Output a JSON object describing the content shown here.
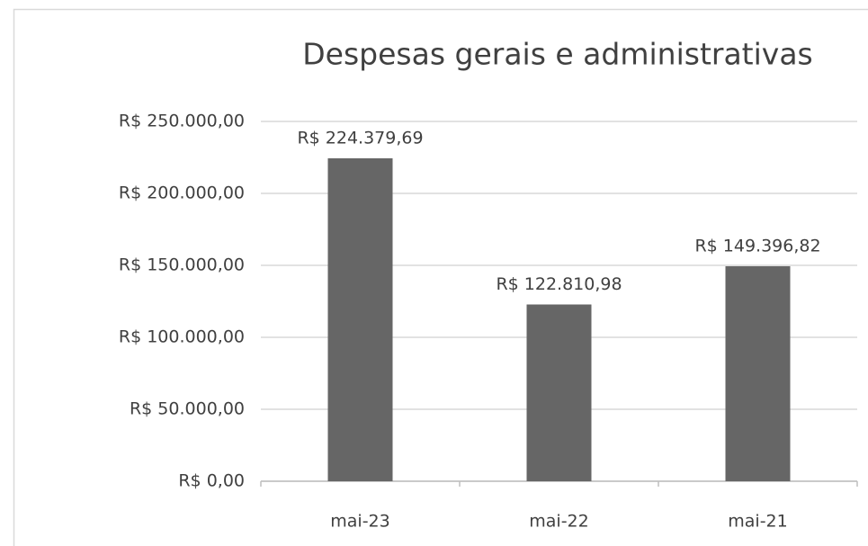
{
  "chart_data": {
    "type": "bar",
    "title": "Despesas gerais e administrativas",
    "categories": [
      "mai-23",
      "mai-22",
      "mai-21"
    ],
    "values": [
      224379.69,
      122810.98,
      149396.82
    ],
    "value_labels": [
      "R$ 224.379,69",
      "R$ 122.810,98",
      "R$ 149.396,82"
    ],
    "color": "#666666",
    "ylim": [
      0,
      250000
    ],
    "yticks": [
      {
        "value": 0,
        "label": "R$ 0,00"
      },
      {
        "value": 50000,
        "label": "R$ 50.000,00"
      },
      {
        "value": 100000,
        "label": "R$ 100.000,00"
      },
      {
        "value": 150000,
        "label": "R$ 150.000,00"
      },
      {
        "value": 200000,
        "label": "R$ 200.000,00"
      },
      {
        "value": 250000,
        "label": "R$ 250.000,00"
      }
    ],
    "grid": true
  }
}
